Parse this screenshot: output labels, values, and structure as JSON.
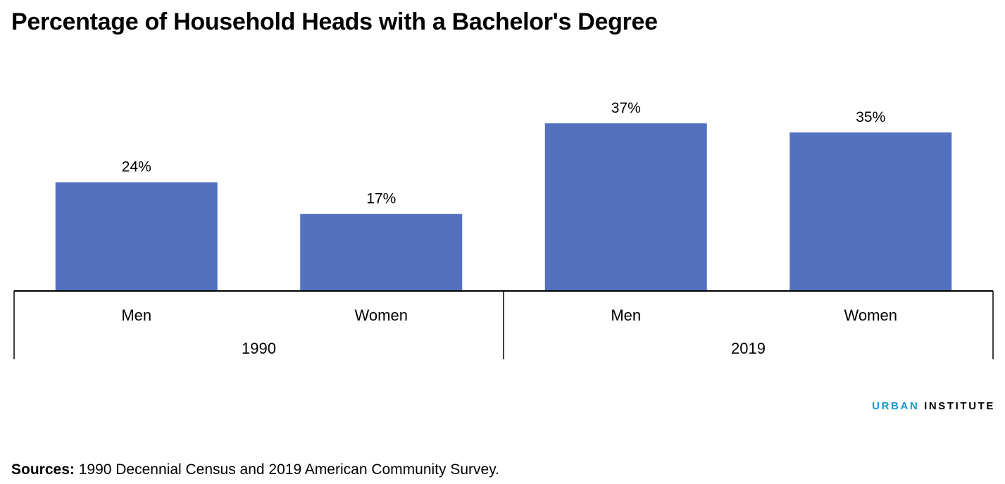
{
  "title": "Percentage of Household Heads with a Bachelor's Degree",
  "logo": {
    "word1": "URBAN",
    "word2": "INSTITUTE",
    "colors": {
      "urban": "#1696d2",
      "institute": "#000000"
    }
  },
  "sources": {
    "label": "Sources:",
    "text": "1990 Decennial Census and 2019 American Community Survey."
  },
  "chart_data": {
    "type": "bar",
    "categories": [
      "Men",
      "Women",
      "Men",
      "Women"
    ],
    "groups": [
      {
        "label": "1990",
        "categories": [
          "Men",
          "Women"
        ]
      },
      {
        "label": "2019",
        "categories": [
          "Men",
          "Women"
        ]
      }
    ],
    "values": [
      24,
      17,
      37,
      35
    ],
    "value_labels": [
      "24%",
      "17%",
      "37%",
      "35%"
    ],
    "value_unit": "%",
    "ylim": [
      0,
      40
    ],
    "grid": false,
    "bar_color": "#5471c0",
    "xlabel": "",
    "ylabel": ""
  }
}
